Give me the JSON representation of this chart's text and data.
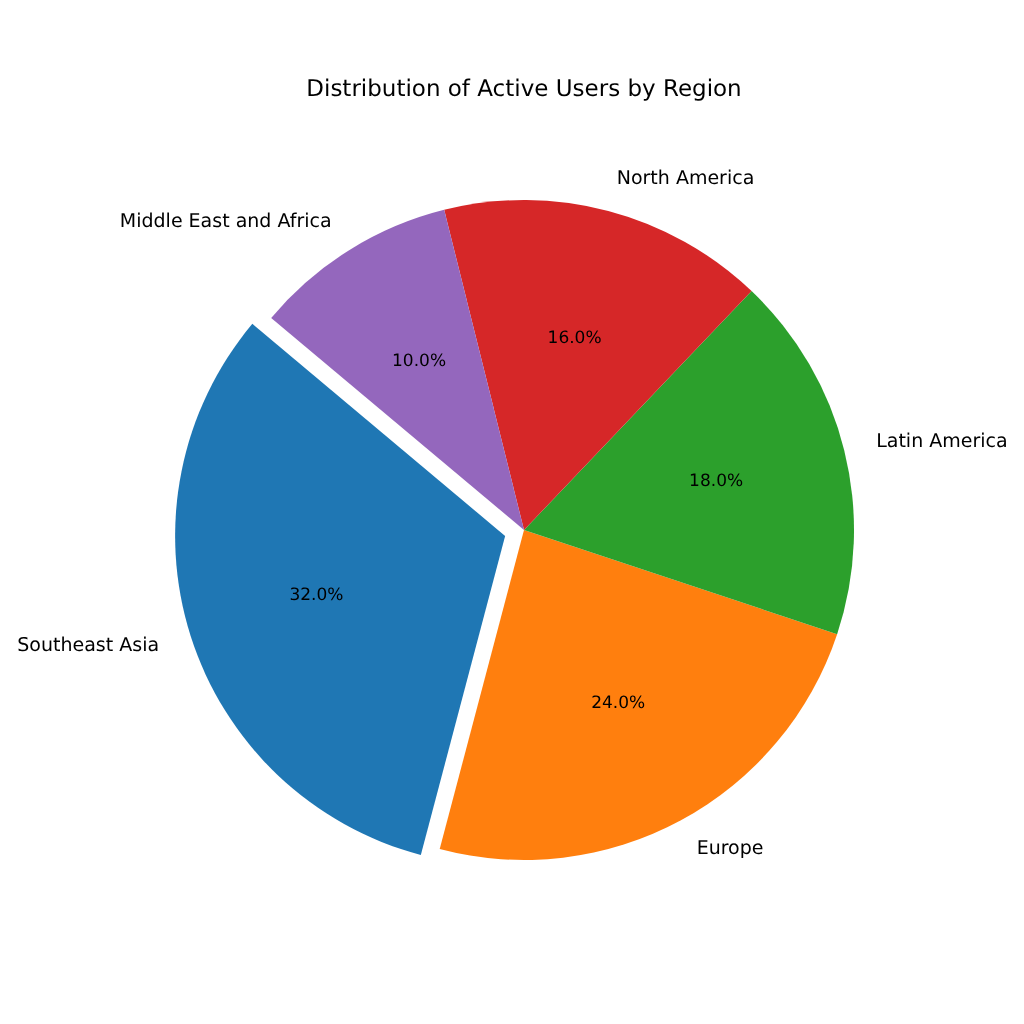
{
  "chart_data": {
    "type": "pie",
    "title": "Distribution of Active Users by Region",
    "categories": [
      "Southeast Asia",
      "Europe",
      "Latin America",
      "North America",
      "Middle East and Africa"
    ],
    "values": [
      32,
      24,
      18,
      16,
      10
    ],
    "colors": [
      "#1f77b4",
      "#ff7f0e",
      "#2ca02c",
      "#d62728",
      "#9467bd"
    ],
    "value_labels": [
      "32.0%",
      "24.0%",
      "18.0%",
      "16.0%",
      "10.0%"
    ]
  }
}
